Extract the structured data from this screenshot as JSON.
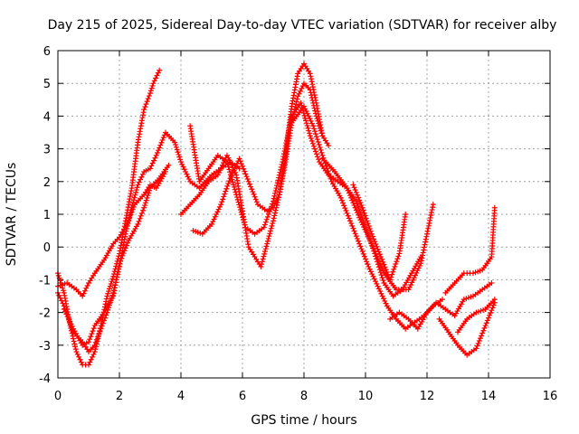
{
  "chart_data": {
    "type": "scatter",
    "title": "Day 215 of 2025, Sidereal Day-to-day VTEC variation (SDTVAR) for receiver alby",
    "xlabel": "GPS time / hours",
    "ylabel": "SDTVAR / TECUs",
    "xlim": [
      0,
      16
    ],
    "ylim": [
      -4,
      6
    ],
    "xticks": [
      0,
      2,
      4,
      6,
      8,
      10,
      12,
      14,
      16
    ],
    "yticks": [
      -4,
      -3,
      -2,
      -1,
      0,
      1,
      2,
      3,
      4,
      5,
      6
    ],
    "grid": true,
    "marker": "plus",
    "color": "#ff0000",
    "series": [
      {
        "x": [
          0.0,
          0.2,
          0.4,
          0.6,
          0.8,
          1.0,
          1.2,
          1.4,
          1.6,
          1.8,
          2.0,
          2.2,
          2.4,
          2.6,
          2.8,
          3.0,
          3.1,
          3.3
        ],
        "y": [
          -0.8,
          -1.4,
          -2.4,
          -3.2,
          -3.6,
          -3.6,
          -3.2,
          -2.4,
          -1.5,
          -0.9,
          -0.2,
          0.8,
          1.8,
          3.2,
          4.2,
          4.7,
          5.0,
          5.4
        ]
      },
      {
        "x": [
          0.0,
          0.2,
          0.5,
          0.8,
          1.0,
          1.2,
          1.4,
          1.6,
          1.8,
          2.0,
          2.2,
          2.4,
          2.6,
          2.8,
          3.0,
          3.2,
          3.5,
          3.8,
          4.0,
          4.3,
          4.6,
          5.0,
          5.3,
          5.6,
          5.9
        ],
        "y": [
          -1.4,
          -1.8,
          -2.6,
          -2.9,
          -3.2,
          -3.0,
          -2.5,
          -2.0,
          -1.4,
          -0.6,
          0.4,
          1.2,
          1.9,
          2.3,
          2.4,
          2.8,
          3.5,
          3.2,
          2.6,
          2.0,
          1.8,
          2.2,
          2.4,
          2.6,
          2.4
        ]
      },
      {
        "x": [
          0.0,
          0.3,
          0.6,
          0.8,
          1.0,
          1.2,
          1.5,
          1.8,
          2.0,
          2.2,
          2.5,
          2.8,
          3.0,
          3.2,
          3.5
        ],
        "y": [
          -1.2,
          -1.1,
          -1.3,
          -1.5,
          -1.1,
          -0.8,
          -0.4,
          0.1,
          0.3,
          0.6,
          1.3,
          1.6,
          1.9,
          1.8,
          2.3
        ]
      },
      {
        "x": [
          0.2,
          0.5,
          0.8,
          1.0,
          1.2,
          1.5,
          1.8,
          2.0,
          2.3,
          2.6,
          2.8,
          3.0,
          3.3,
          3.6
        ],
        "y": [
          -1.9,
          -2.5,
          -3.0,
          -2.9,
          -2.4,
          -2.0,
          -1.5,
          -0.5,
          0.2,
          0.7,
          1.2,
          1.8,
          2.1,
          2.5
        ]
      },
      {
        "x": [
          4.0,
          4.3,
          4.6,
          4.9,
          5.2,
          5.5,
          5.8,
          6.0,
          6.2,
          6.4,
          6.6,
          6.8,
          7.0,
          7.2,
          7.4,
          7.6,
          7.8,
          8.0,
          8.2,
          8.4,
          8.6,
          8.8
        ],
        "y": [
          1.0,
          1.3,
          1.6,
          2.0,
          2.2,
          2.8,
          2.2,
          1.1,
          0.0,
          -0.3,
          -0.6,
          0.1,
          0.8,
          1.6,
          2.6,
          3.8,
          4.6,
          5.0,
          4.8,
          4.0,
          3.4,
          3.1
        ]
      },
      {
        "x": [
          4.4,
          4.7,
          5.0,
          5.3,
          5.6,
          5.9,
          6.2,
          6.5,
          6.8,
          7.0,
          7.2,
          7.4,
          7.6,
          7.8,
          8.0,
          8.2,
          8.4,
          8.6
        ],
        "y": [
          0.5,
          0.4,
          0.7,
          1.3,
          2.1,
          2.7,
          2.0,
          1.3,
          1.1,
          1.2,
          1.6,
          2.8,
          4.3,
          5.3,
          5.6,
          5.3,
          4.4,
          3.4
        ]
      },
      {
        "x": [
          4.3,
          4.6,
          4.9,
          5.2,
          5.5,
          5.8,
          6.1,
          6.4,
          6.7,
          7.0,
          7.3,
          7.6,
          7.9,
          8.2,
          8.5,
          8.8,
          9.1,
          9.4,
          9.7,
          10.0,
          10.3,
          10.6,
          10.9,
          11.2,
          11.5,
          11.8
        ],
        "y": [
          3.7,
          2.0,
          2.4,
          2.8,
          2.6,
          1.6,
          0.6,
          0.4,
          0.6,
          1.4,
          2.6,
          4.0,
          4.4,
          3.4,
          2.6,
          2.2,
          2.0,
          1.8,
          1.4,
          0.6,
          -0.2,
          -1.1,
          -1.5,
          -1.3,
          -0.8,
          -0.3
        ]
      },
      {
        "x": [
          7.6,
          8.0,
          8.3,
          8.6,
          8.9,
          9.2,
          9.5,
          9.8,
          10.1,
          10.4,
          10.7,
          11.0,
          11.3,
          11.6,
          11.9,
          12.2,
          12.5
        ],
        "y": [
          3.8,
          4.3,
          3.7,
          2.8,
          2.0,
          1.5,
          0.8,
          0.1,
          -0.6,
          -1.2,
          -1.8,
          -2.2,
          -2.5,
          -2.3,
          -2.1,
          -1.8,
          -1.6
        ]
      },
      {
        "x": [
          8.6,
          9.0,
          9.4,
          9.8,
          10.2,
          10.6,
          11.0,
          11.4,
          11.8,
          12.2
        ],
        "y": [
          2.7,
          2.3,
          1.8,
          0.9,
          0.1,
          -0.8,
          -1.3,
          -1.3,
          -0.5,
          1.3
        ]
      },
      {
        "x": [
          9.6,
          9.9,
          10.2,
          10.5,
          10.8,
          11.1,
          11.3
        ],
        "y": [
          1.9,
          1.2,
          0.4,
          -0.3,
          -1.0,
          -0.2,
          1.0
        ]
      },
      {
        "x": [
          10.8,
          11.1,
          11.4,
          11.7,
          12.0,
          12.3,
          12.6,
          12.9,
          13.2,
          13.5,
          13.8,
          14.1
        ],
        "y": [
          -2.2,
          -2.0,
          -2.2,
          -2.5,
          -2.0,
          -1.7,
          -1.9,
          -2.1,
          -1.6,
          -1.5,
          -1.3,
          -1.1
        ]
      },
      {
        "x": [
          12.4,
          12.7,
          13.0,
          13.3,
          13.6,
          13.9,
          14.2
        ],
        "y": [
          -2.2,
          -2.6,
          -3.0,
          -3.3,
          -3.1,
          -2.4,
          -1.7
        ]
      },
      {
        "x": [
          12.6,
          12.9,
          13.2,
          13.5,
          13.8,
          14.1,
          14.2
        ],
        "y": [
          -1.4,
          -1.1,
          -0.8,
          -0.8,
          -0.7,
          -0.3,
          1.2
        ]
      },
      {
        "x": [
          13.0,
          13.3,
          13.6,
          13.9,
          14.2
        ],
        "y": [
          -2.6,
          -2.2,
          -2.0,
          -1.9,
          -1.6
        ]
      }
    ]
  }
}
